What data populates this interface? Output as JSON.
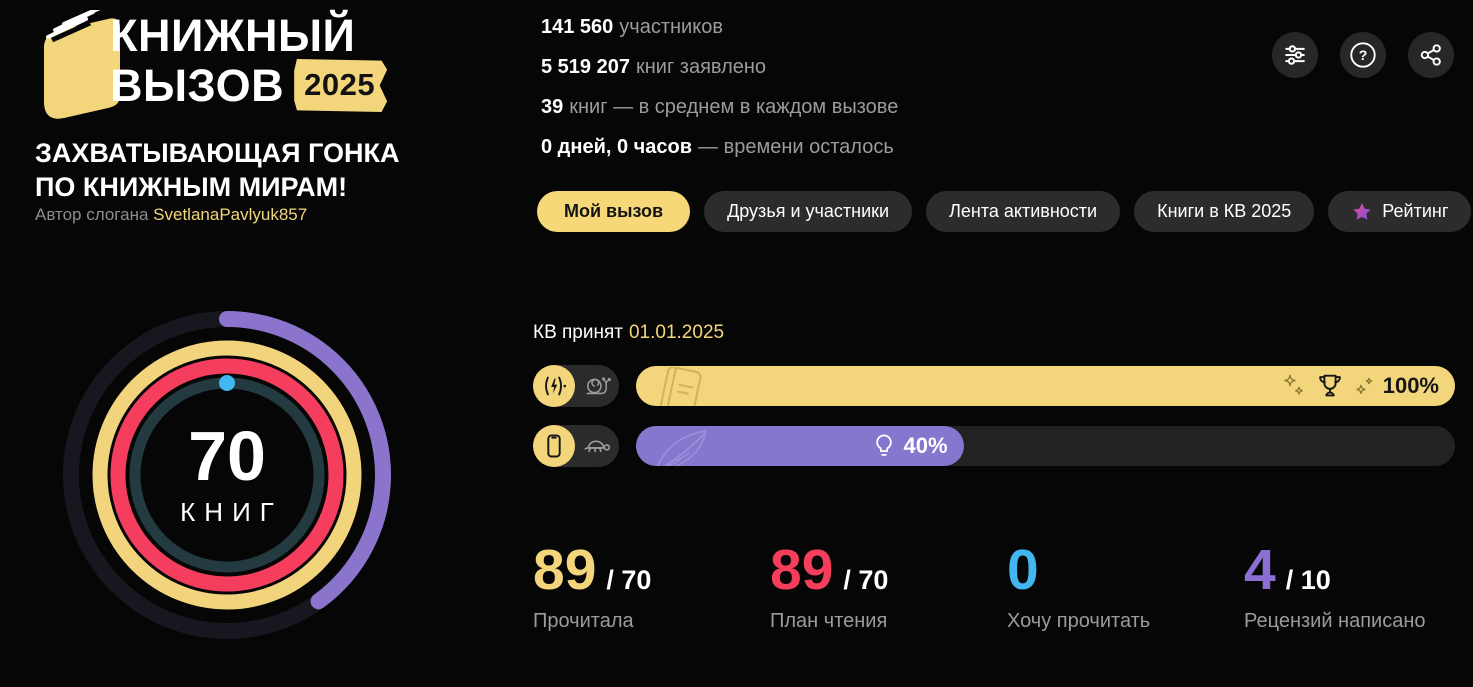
{
  "theme": {
    "bg": "#060606",
    "yellow": "#f3d67b",
    "red": "#f43e5c",
    "blue": "#42b6ee",
    "purple": "#8b6fd6",
    "pill_bg": "#2c2c2c",
    "ring_track": "#17171f",
    "gray_text": "#9b9b9b"
  },
  "logo": {
    "title_line1": "КНИЖНЫЙ",
    "title_line2": "ВЫЗОВ",
    "year_badge": "2025",
    "slogan_line1": "ЗАХВАТЫВАЮЩАЯ ГОНКА",
    "slogan_line2": "ПО КНИЖНЫМ МИРАМ!",
    "author_prefix": "Автор слогана",
    "author_name": "SvetlanaPavlyuk857"
  },
  "stats": [
    {
      "value": "141 560",
      "label": "участников"
    },
    {
      "value": "5 519 207",
      "label": "книг заявлено"
    },
    {
      "value": "39",
      "label": "книг — в среднем в каждом вызове"
    },
    {
      "value": "0 дней, 0 часов",
      "label": "— времени осталось"
    }
  ],
  "header_actions": [
    {
      "name": "filter-settings",
      "icon": "sliders-icon"
    },
    {
      "name": "help",
      "icon": "question-icon"
    },
    {
      "name": "share",
      "icon": "share-icon"
    }
  ],
  "tabs": [
    {
      "label": "Мой вызов",
      "active": true
    },
    {
      "label": "Друзья и участники",
      "active": false
    },
    {
      "label": "Лента активности",
      "active": false
    },
    {
      "label": "Книги в КВ 2025",
      "active": false
    },
    {
      "label": "Рейтинг",
      "active": false,
      "icon": "star-icon"
    }
  ],
  "challenge": {
    "accepted_label": "КВ принят",
    "accepted_date": "01.01.2025",
    "goal_value": "70",
    "goal_unit": "КНИГ",
    "rings": [
      {
        "name": "reviews-ring",
        "color": "#8b75cc",
        "percent": 40
      },
      {
        "name": "read-ring",
        "color": "#f1d47c",
        "percent": 100
      },
      {
        "name": "plan-ring",
        "color": "#f53e5e",
        "percent": 100
      },
      {
        "name": "wishlist-ring",
        "color": "#223a40",
        "percent": 100,
        "marker": {
          "color": "#42b6ee",
          "percent": 0
        }
      }
    ],
    "progress_bars": [
      {
        "icon_active": "battery-charging-icon",
        "icon_inactive": "snail-icon",
        "ghost_icon": "book-ghost-icon",
        "badge_icon": "trophy-icon",
        "percent": 100,
        "percent_label": "100%",
        "fill_color": "#f3d67b"
      },
      {
        "icon_active": "smartphone-icon",
        "icon_inactive": "turtle-icon",
        "ghost_icon": "feather-ghost-icon",
        "badge_icon": "lightbulb-icon",
        "percent": 40,
        "percent_label": "40%",
        "fill_color": "#8677ce"
      }
    ]
  },
  "counters": [
    {
      "value": "89",
      "total": "/ 70",
      "label": "Прочитала",
      "color": "#f3d67b"
    },
    {
      "value": "89",
      "total": "/ 70",
      "label": "План чтения",
      "color": "#f43e5c"
    },
    {
      "value": "0",
      "total": "",
      "label": "Хочу прочитать",
      "color": "#42b6ee"
    },
    {
      "value": "4",
      "total": "/ 10",
      "label": "Рецензий написано",
      "color": "#8b6fd6"
    }
  ]
}
